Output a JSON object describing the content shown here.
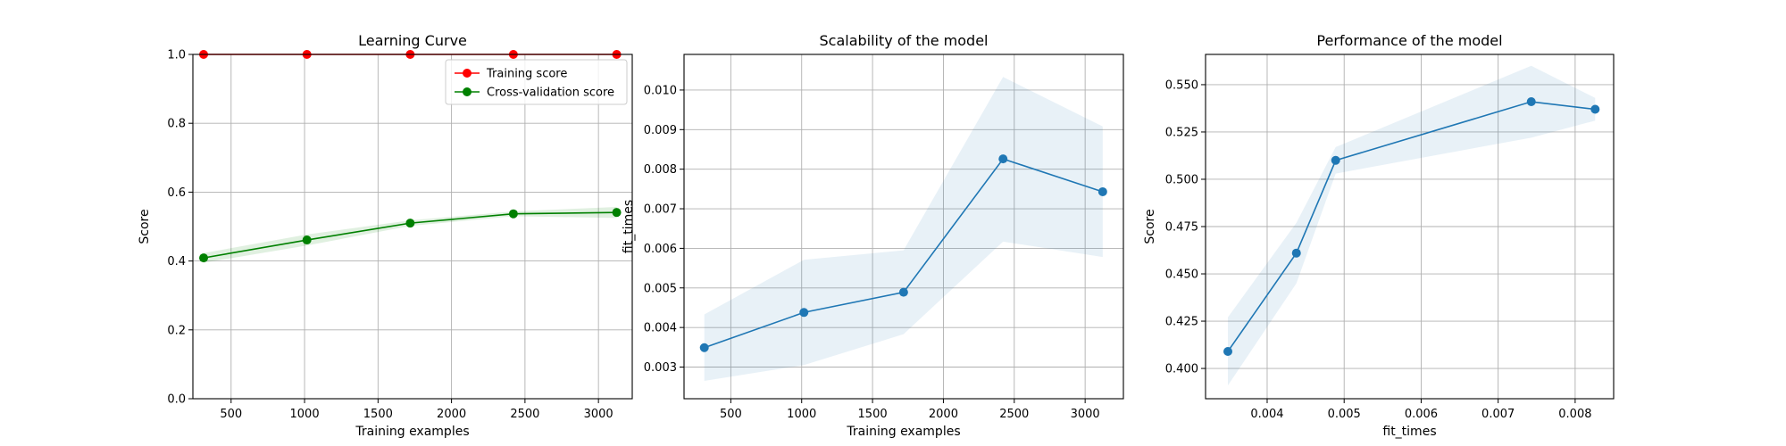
{
  "chart_data": [
    {
      "type": "line",
      "title": "Learning Curve",
      "xlabel": "Training examples",
      "ylabel": "Score",
      "xlim": [
        240,
        3230
      ],
      "ylim": [
        0.0,
        1.0
      ],
      "xticks": [
        500,
        1000,
        1500,
        2000,
        2500,
        3000
      ],
      "yticks": [
        0.0,
        0.2,
        0.4,
        0.6,
        0.8,
        1.0
      ],
      "ytick_labels": [
        "0.0",
        "0.2",
        "0.4",
        "0.6",
        "0.8",
        "1.0"
      ],
      "grid": true,
      "legend": "top-right",
      "x": [
        313,
        1016,
        1719,
        2421,
        3124
      ],
      "series": [
        {
          "name": "Training score",
          "color": "#ff0000",
          "values": [
            1.0,
            1.0,
            1.0,
            1.0,
            1.0
          ],
          "band": [
            [
              1.0,
              1.0
            ],
            [
              1.0,
              1.0
            ],
            [
              1.0,
              1.0
            ],
            [
              1.0,
              1.0
            ],
            [
              1.0,
              1.0
            ]
          ]
        },
        {
          "name": "Cross-validation score",
          "color": "#008000",
          "values": [
            0.409,
            0.461,
            0.51,
            0.537,
            0.541
          ],
          "band": [
            [
              0.395,
              0.423
            ],
            [
              0.445,
              0.477
            ],
            [
              0.502,
              0.518
            ],
            [
              0.53,
              0.544
            ],
            [
              0.525,
              0.557
            ]
          ]
        }
      ]
    },
    {
      "type": "line",
      "title": "Scalability of the model",
      "xlabel": "Training examples",
      "ylabel": "fit_times",
      "xlim": [
        170,
        3270
      ],
      "ylim": [
        0.0022,
        0.0109
      ],
      "xticks": [
        500,
        1000,
        1500,
        2000,
        2500,
        3000
      ],
      "yticks": [
        0.003,
        0.004,
        0.005,
        0.006,
        0.007,
        0.008,
        0.009,
        0.01
      ],
      "ytick_labels": [
        "0.003",
        "0.004",
        "0.005",
        "0.006",
        "0.007",
        "0.008",
        "0.009",
        "0.010"
      ],
      "grid": true,
      "x": [
        313,
        1016,
        1719,
        2421,
        3124
      ],
      "series": [
        {
          "color": "#1f77b4",
          "values": [
            0.00349,
            0.00438,
            0.00489,
            0.00826,
            0.00743
          ],
          "band": [
            [
              0.00265,
              0.00433
            ],
            [
              0.00305,
              0.00571
            ],
            [
              0.00383,
              0.00595
            ],
            [
              0.00617,
              0.01033
            ],
            [
              0.00578,
              0.00908
            ]
          ]
        }
      ]
    },
    {
      "type": "line",
      "title": "Performance of the model",
      "xlabel": "fit_times",
      "ylabel": "Score",
      "xlim": [
        0.0032,
        0.0085
      ],
      "ylim": [
        0.384,
        0.566
      ],
      "xticks": [
        0.004,
        0.005,
        0.006,
        0.007,
        0.008
      ],
      "xtick_labels": [
        "0.004",
        "0.005",
        "0.006",
        "0.007",
        "0.008"
      ],
      "yticks": [
        0.4,
        0.425,
        0.45,
        0.475,
        0.5,
        0.525,
        0.55
      ],
      "ytick_labels": [
        "0.400",
        "0.425",
        "0.450",
        "0.475",
        "0.500",
        "0.525",
        "0.550"
      ],
      "grid": true,
      "x": [
        0.00349,
        0.00438,
        0.00489,
        0.00743,
        0.00826
      ],
      "series": [
        {
          "color": "#1f77b4",
          "values": [
            0.409,
            0.461,
            0.51,
            0.541,
            0.537
          ],
          "band": [
            [
              0.391,
              0.427
            ],
            [
              0.445,
              0.477
            ],
            [
              0.503,
              0.517
            ],
            [
              0.522,
              0.56
            ],
            [
              0.531,
              0.543
            ]
          ]
        }
      ]
    }
  ]
}
